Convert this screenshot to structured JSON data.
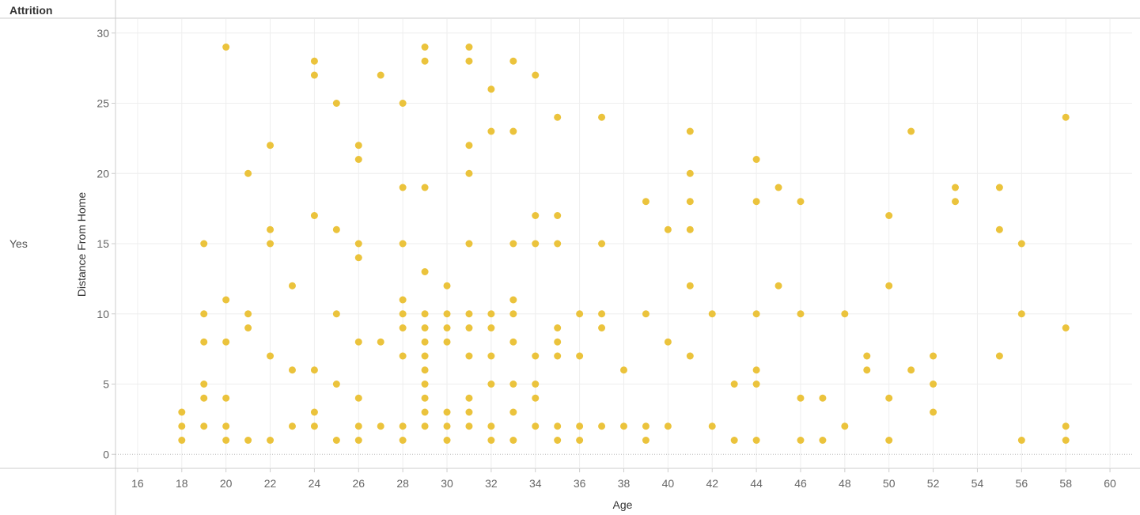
{
  "header": {
    "row_field": "Attrition"
  },
  "row_label": "Yes",
  "colors": {
    "dot": "#EBC33C",
    "grid": "#EEEEEE",
    "frame": "#CCCCCC"
  },
  "chart_data": {
    "type": "scatter",
    "xlabel": "Age",
    "ylabel": "Distance From Home",
    "xlim": [
      15,
      61
    ],
    "ylim": [
      -1,
      31
    ],
    "xticks": [
      "16",
      "18",
      "20",
      "22",
      "24",
      "26",
      "28",
      "30",
      "32",
      "34",
      "36",
      "38",
      "40",
      "42",
      "44",
      "46",
      "48",
      "50",
      "52",
      "54",
      "56",
      "58",
      "60"
    ],
    "yticks": [
      "0",
      "5",
      "10",
      "15",
      "20",
      "25",
      "30"
    ],
    "grid": true,
    "points": [
      [
        18,
        3
      ],
      [
        18,
        2
      ],
      [
        18,
        1
      ],
      [
        19,
        15
      ],
      [
        19,
        10
      ],
      [
        19,
        8
      ],
      [
        19,
        5
      ],
      [
        19,
        4
      ],
      [
        19,
        2
      ],
      [
        20,
        29
      ],
      [
        20,
        11
      ],
      [
        20,
        8
      ],
      [
        20,
        4
      ],
      [
        20,
        2
      ],
      [
        20,
        1
      ],
      [
        21,
        20
      ],
      [
        21,
        10
      ],
      [
        21,
        9
      ],
      [
        21,
        1
      ],
      [
        22,
        22
      ],
      [
        22,
        16
      ],
      [
        22,
        15
      ],
      [
        22,
        7
      ],
      [
        22,
        1
      ],
      [
        23,
        12
      ],
      [
        23,
        6
      ],
      [
        23,
        2
      ],
      [
        24,
        28
      ],
      [
        24,
        27
      ],
      [
        24,
        17
      ],
      [
        24,
        6
      ],
      [
        24,
        3
      ],
      [
        24,
        2
      ],
      [
        25,
        25
      ],
      [
        25,
        16
      ],
      [
        25,
        10
      ],
      [
        25,
        5
      ],
      [
        25,
        1
      ],
      [
        26,
        22
      ],
      [
        26,
        21
      ],
      [
        26,
        15
      ],
      [
        26,
        14
      ],
      [
        26,
        8
      ],
      [
        26,
        4
      ],
      [
        26,
        2
      ],
      [
        26,
        1
      ],
      [
        27,
        27
      ],
      [
        27,
        8
      ],
      [
        27,
        2
      ],
      [
        28,
        25
      ],
      [
        28,
        19
      ],
      [
        28,
        15
      ],
      [
        28,
        11
      ],
      [
        28,
        10
      ],
      [
        28,
        9
      ],
      [
        28,
        7
      ],
      [
        28,
        2
      ],
      [
        28,
        1
      ],
      [
        29,
        29
      ],
      [
        29,
        28
      ],
      [
        29,
        19
      ],
      [
        29,
        13
      ],
      [
        29,
        10
      ],
      [
        29,
        9
      ],
      [
        29,
        8
      ],
      [
        29,
        7
      ],
      [
        29,
        6
      ],
      [
        29,
        5
      ],
      [
        29,
        4
      ],
      [
        29,
        3
      ],
      [
        29,
        2
      ],
      [
        30,
        12
      ],
      [
        30,
        10
      ],
      [
        30,
        9
      ],
      [
        30,
        8
      ],
      [
        30,
        3
      ],
      [
        30,
        2
      ],
      [
        30,
        1
      ],
      [
        31,
        29
      ],
      [
        31,
        28
      ],
      [
        31,
        22
      ],
      [
        31,
        20
      ],
      [
        31,
        15
      ],
      [
        31,
        10
      ],
      [
        31,
        9
      ],
      [
        31,
        7
      ],
      [
        31,
        4
      ],
      [
        31,
        3
      ],
      [
        31,
        2
      ],
      [
        32,
        26
      ],
      [
        32,
        23
      ],
      [
        32,
        10
      ],
      [
        32,
        9
      ],
      [
        32,
        7
      ],
      [
        32,
        5
      ],
      [
        32,
        2
      ],
      [
        32,
        1
      ],
      [
        33,
        28
      ],
      [
        33,
        23
      ],
      [
        33,
        15
      ],
      [
        33,
        11
      ],
      [
        33,
        10
      ],
      [
        33,
        8
      ],
      [
        33,
        5
      ],
      [
        33,
        3
      ],
      [
        33,
        1
      ],
      [
        34,
        27
      ],
      [
        34,
        17
      ],
      [
        34,
        15
      ],
      [
        34,
        7
      ],
      [
        34,
        5
      ],
      [
        34,
        4
      ],
      [
        34,
        2
      ],
      [
        35,
        24
      ],
      [
        35,
        17
      ],
      [
        35,
        15
      ],
      [
        35,
        9
      ],
      [
        35,
        8
      ],
      [
        35,
        7
      ],
      [
        35,
        2
      ],
      [
        35,
        1
      ],
      [
        36,
        10
      ],
      [
        36,
        7
      ],
      [
        36,
        2
      ],
      [
        36,
        1
      ],
      [
        37,
        24
      ],
      [
        37,
        15
      ],
      [
        37,
        10
      ],
      [
        37,
        9
      ],
      [
        37,
        2
      ],
      [
        38,
        6
      ],
      [
        38,
        2
      ],
      [
        39,
        18
      ],
      [
        39,
        10
      ],
      [
        39,
        2
      ],
      [
        39,
        1
      ],
      [
        40,
        16
      ],
      [
        40,
        8
      ],
      [
        40,
        2
      ],
      [
        41,
        23
      ],
      [
        41,
        20
      ],
      [
        41,
        18
      ],
      [
        41,
        16
      ],
      [
        41,
        12
      ],
      [
        41,
        7
      ],
      [
        42,
        10
      ],
      [
        42,
        2
      ],
      [
        43,
        5
      ],
      [
        43,
        1
      ],
      [
        44,
        21
      ],
      [
        44,
        18
      ],
      [
        44,
        10
      ],
      [
        44,
        6
      ],
      [
        44,
        5
      ],
      [
        44,
        1
      ],
      [
        45,
        19
      ],
      [
        45,
        12
      ],
      [
        46,
        18
      ],
      [
        46,
        10
      ],
      [
        46,
        4
      ],
      [
        46,
        1
      ],
      [
        47,
        4
      ],
      [
        47,
        1
      ],
      [
        48,
        10
      ],
      [
        48,
        2
      ],
      [
        49,
        7
      ],
      [
        49,
        6
      ],
      [
        50,
        17
      ],
      [
        50,
        12
      ],
      [
        50,
        4
      ],
      [
        50,
        1
      ],
      [
        51,
        23
      ],
      [
        51,
        6
      ],
      [
        52,
        7
      ],
      [
        52,
        5
      ],
      [
        52,
        3
      ],
      [
        53,
        19
      ],
      [
        53,
        18
      ],
      [
        55,
        19
      ],
      [
        55,
        16
      ],
      [
        55,
        7
      ],
      [
        56,
        15
      ],
      [
        56,
        10
      ],
      [
        56,
        1
      ],
      [
        58,
        24
      ],
      [
        58,
        9
      ],
      [
        58,
        2
      ],
      [
        58,
        1
      ]
    ]
  }
}
